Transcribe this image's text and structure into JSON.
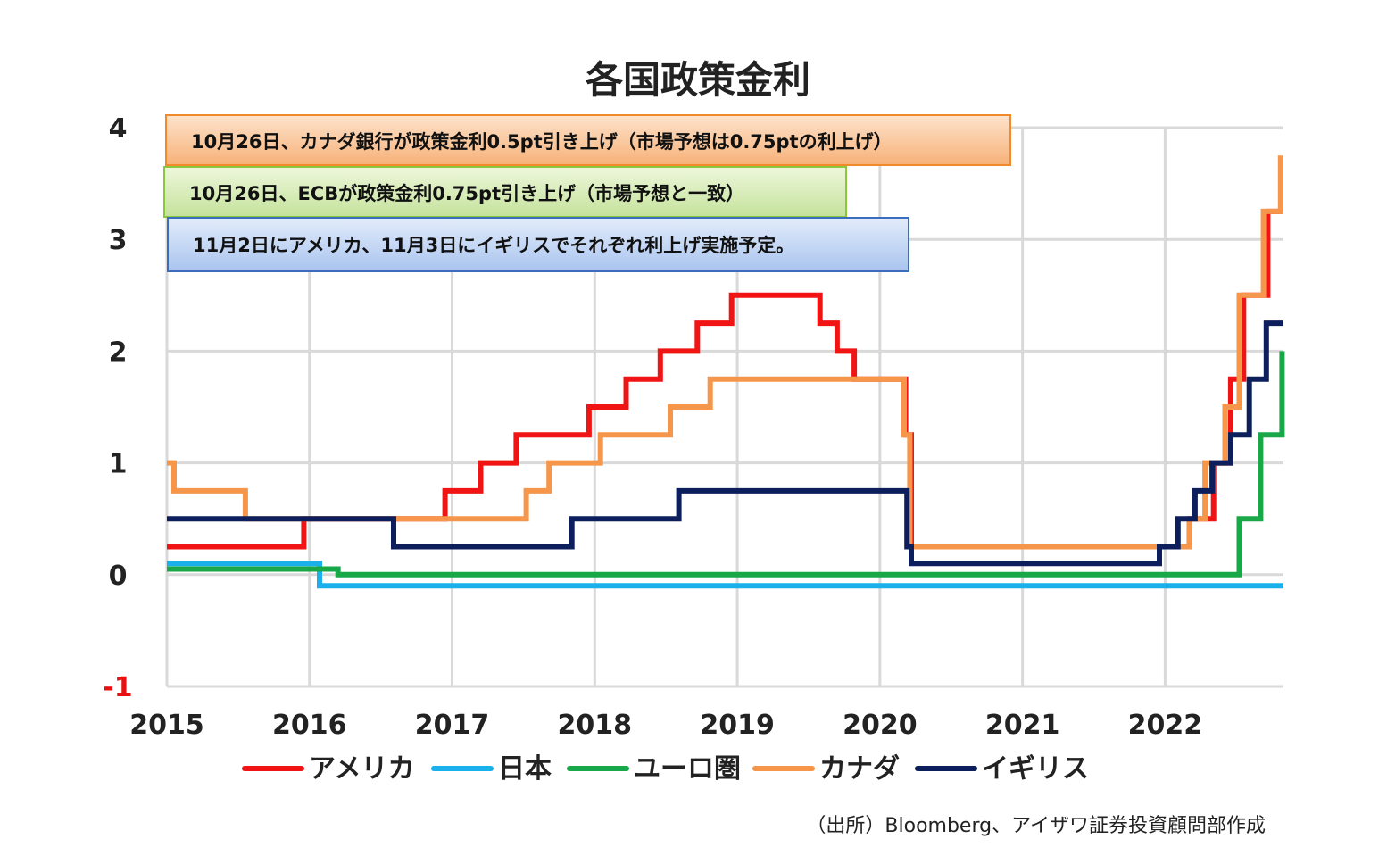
{
  "chart_data": {
    "type": "line",
    "title": "各国政策金利",
    "xlabel": "",
    "ylabel": "",
    "xlim": [
      2015.0,
      2022.83
    ],
    "ylim": [
      -1,
      4
    ],
    "yticks": [
      "-1",
      "0",
      "1",
      "2",
      "3",
      "4"
    ],
    "xticks": [
      "2015",
      "2016",
      "2017",
      "2018",
      "2019",
      "2020",
      "2021",
      "2022"
    ],
    "grid": true,
    "legend_position": "bottom",
    "series": [
      {
        "name": "アメリカ",
        "color": "#f01414",
        "points": [
          [
            2015.0,
            0.25
          ],
          [
            2015.96,
            0.25
          ],
          [
            2015.96,
            0.5
          ],
          [
            2016.95,
            0.5
          ],
          [
            2016.95,
            0.75
          ],
          [
            2017.2,
            0.75
          ],
          [
            2017.2,
            1.0
          ],
          [
            2017.45,
            1.0
          ],
          [
            2017.45,
            1.25
          ],
          [
            2017.96,
            1.25
          ],
          [
            2017.96,
            1.5
          ],
          [
            2018.22,
            1.5
          ],
          [
            2018.22,
            1.75
          ],
          [
            2018.46,
            1.75
          ],
          [
            2018.46,
            2.0
          ],
          [
            2018.72,
            2.0
          ],
          [
            2018.72,
            2.25
          ],
          [
            2018.96,
            2.25
          ],
          [
            2018.96,
            2.5
          ],
          [
            2019.58,
            2.5
          ],
          [
            2019.58,
            2.25
          ],
          [
            2019.7,
            2.25
          ],
          [
            2019.7,
            2.0
          ],
          [
            2019.82,
            2.0
          ],
          [
            2019.82,
            1.75
          ],
          [
            2020.18,
            1.75
          ],
          [
            2020.18,
            1.25
          ],
          [
            2020.22,
            1.25
          ],
          [
            2020.22,
            0.25
          ],
          [
            2022.17,
            0.25
          ],
          [
            2022.17,
            0.5
          ],
          [
            2022.34,
            0.5
          ],
          [
            2022.34,
            1.0
          ],
          [
            2022.46,
            1.0
          ],
          [
            2022.46,
            1.75
          ],
          [
            2022.55,
            1.75
          ],
          [
            2022.55,
            2.5
          ],
          [
            2022.72,
            2.5
          ],
          [
            2022.72,
            3.25
          ],
          [
            2022.83,
            3.25
          ]
        ]
      },
      {
        "name": "日本",
        "color": "#1ab0ec",
        "points": [
          [
            2015.0,
            0.1
          ],
          [
            2016.07,
            0.1
          ],
          [
            2016.07,
            -0.1
          ],
          [
            2022.83,
            -0.1
          ]
        ]
      },
      {
        "name": "ユーロ圏",
        "color": "#18a848",
        "points": [
          [
            2015.0,
            0.05
          ],
          [
            2016.2,
            0.05
          ],
          [
            2016.2,
            0.0
          ],
          [
            2022.52,
            0.0
          ],
          [
            2022.52,
            0.5
          ],
          [
            2022.67,
            0.5
          ],
          [
            2022.67,
            1.25
          ],
          [
            2022.82,
            1.25
          ],
          [
            2022.82,
            2.0
          ]
        ]
      },
      {
        "name": "カナダ",
        "color": "#f5964a",
        "points": [
          [
            2015.0,
            1.0
          ],
          [
            2015.05,
            1.0
          ],
          [
            2015.05,
            0.75
          ],
          [
            2015.55,
            0.75
          ],
          [
            2015.55,
            0.5
          ],
          [
            2017.52,
            0.5
          ],
          [
            2017.52,
            0.75
          ],
          [
            2017.68,
            0.75
          ],
          [
            2017.68,
            1.0
          ],
          [
            2018.04,
            1.0
          ],
          [
            2018.04,
            1.25
          ],
          [
            2018.53,
            1.25
          ],
          [
            2018.53,
            1.5
          ],
          [
            2018.81,
            1.5
          ],
          [
            2018.81,
            1.75
          ],
          [
            2020.17,
            1.75
          ],
          [
            2020.17,
            1.25
          ],
          [
            2020.21,
            1.25
          ],
          [
            2020.21,
            0.25
          ],
          [
            2022.17,
            0.25
          ],
          [
            2022.17,
            0.5
          ],
          [
            2022.28,
            0.5
          ],
          [
            2022.28,
            1.0
          ],
          [
            2022.42,
            1.0
          ],
          [
            2022.42,
            1.5
          ],
          [
            2022.52,
            1.5
          ],
          [
            2022.52,
            2.5
          ],
          [
            2022.69,
            2.5
          ],
          [
            2022.69,
            3.25
          ],
          [
            2022.81,
            3.25
          ],
          [
            2022.81,
            3.75
          ]
        ]
      },
      {
        "name": "イギリス",
        "color": "#0c1f5c",
        "points": [
          [
            2015.0,
            0.5
          ],
          [
            2016.59,
            0.5
          ],
          [
            2016.59,
            0.25
          ],
          [
            2017.84,
            0.25
          ],
          [
            2017.84,
            0.5
          ],
          [
            2018.59,
            0.5
          ],
          [
            2018.59,
            0.75
          ],
          [
            2020.19,
            0.75
          ],
          [
            2020.19,
            0.25
          ],
          [
            2020.22,
            0.25
          ],
          [
            2020.22,
            0.1
          ],
          [
            2021.96,
            0.1
          ],
          [
            2021.96,
            0.25
          ],
          [
            2022.09,
            0.25
          ],
          [
            2022.09,
            0.5
          ],
          [
            2022.21,
            0.5
          ],
          [
            2022.21,
            0.75
          ],
          [
            2022.33,
            0.75
          ],
          [
            2022.33,
            1.0
          ],
          [
            2022.46,
            1.0
          ],
          [
            2022.46,
            1.25
          ],
          [
            2022.59,
            1.25
          ],
          [
            2022.59,
            1.75
          ],
          [
            2022.71,
            1.75
          ],
          [
            2022.71,
            2.25
          ],
          [
            2022.83,
            2.25
          ]
        ]
      }
    ],
    "annotations": [
      {
        "text": "10月26日、カナダ銀行が政策金利0.5pt引き上げ（市場予想は0.75ptの利上げ）",
        "fill_top": "#fde3cc",
        "fill_bottom": "#f7b178",
        "stroke": "#f08a2a"
      },
      {
        "text": "10月26日、ECBが政策金利0.75pt引き上げ（市場予想と一致）",
        "fill_top": "#eef7dc",
        "fill_bottom": "#c4e29a",
        "stroke": "#8cc63f"
      },
      {
        "text": "11月2日にアメリカ、11月3日にイギリスでそれぞれ利上げ実施予定。",
        "fill_top": "#e3ecfa",
        "fill_bottom": "#a9c4ef",
        "stroke": "#3b6dbf"
      }
    ]
  },
  "source": "（出所）Bloomberg、アイザワ証券投資顧問部作成"
}
